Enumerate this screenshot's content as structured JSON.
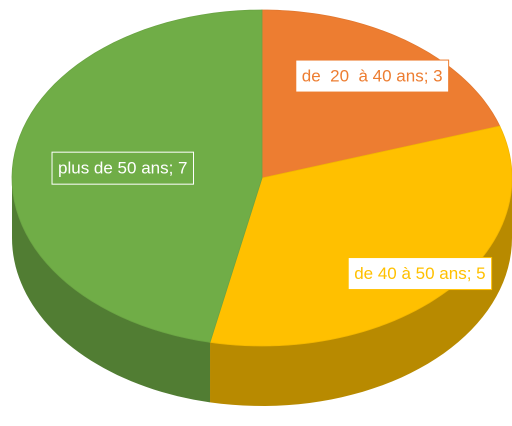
{
  "chart_data": {
    "type": "pie",
    "values": [
      3,
      5,
      7
    ],
    "value_labels": [
      "de  20  à 40 ans; 3",
      "de 40 à 50 ans; 5",
      "plus de 50 ans; 7"
    ],
    "colors": [
      "#ED7D31",
      "#FFC000",
      "#70AD47"
    ]
  }
}
